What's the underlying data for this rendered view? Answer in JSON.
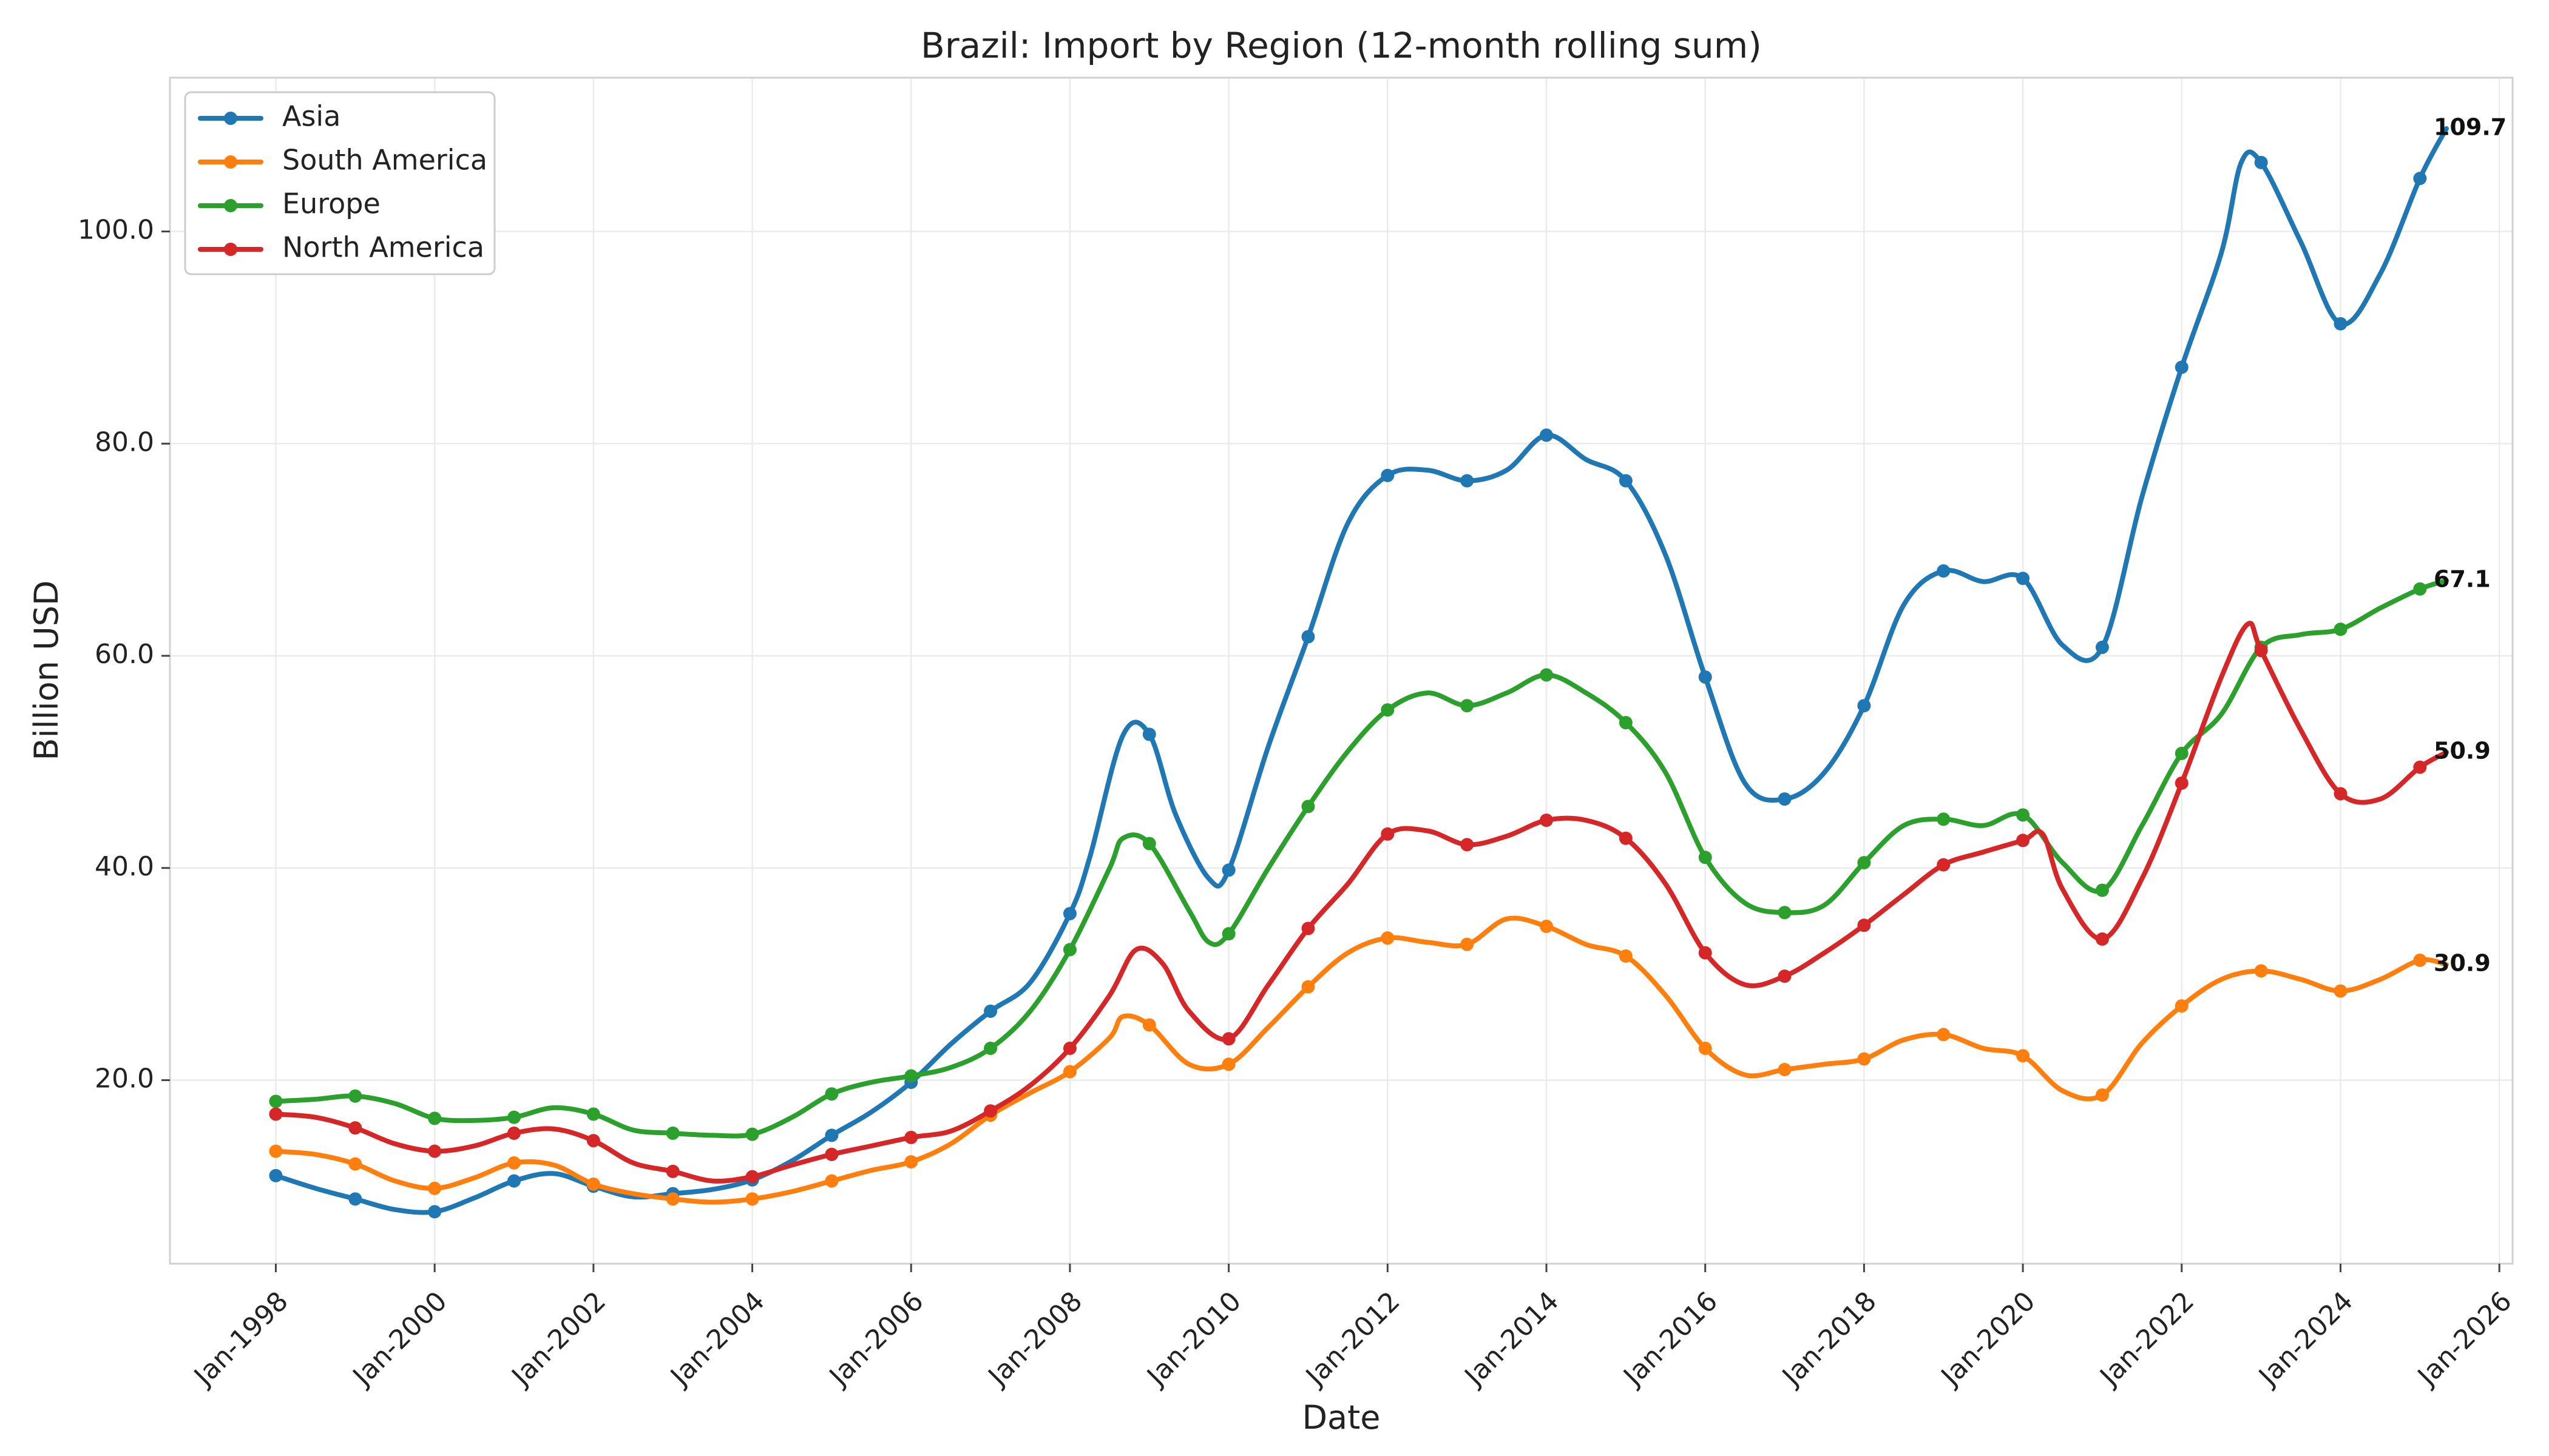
{
  "chart_data": {
    "type": "line",
    "title": "Brazil: Import by Region (12-month rolling sum)",
    "xlabel": "Date",
    "ylabel": "Billion USD",
    "xlim": [
      "1996-09",
      "2026-03"
    ],
    "ylim": [
      2.7,
      114.5
    ],
    "grid": true,
    "legend_position": "top-left",
    "x_ticks": [
      "Jan-1998",
      "Jan-2000",
      "Jan-2002",
      "Jan-2004",
      "Jan-2006",
      "Jan-2008",
      "Jan-2010",
      "Jan-2012",
      "Jan-2014",
      "Jan-2016",
      "Jan-2018",
      "Jan-2020",
      "Jan-2022",
      "Jan-2024",
      "Jan-2026"
    ],
    "y_ticks": [
      "20.0",
      "40.0",
      "60.0",
      "80.0",
      "100.0"
    ],
    "series": [
      {
        "name": "Asia",
        "color": "#1f77b4",
        "end_label": "109.7",
        "points": [
          [
            "1998-01",
            11.0
          ],
          [
            "1998-07",
            9.8
          ],
          [
            "1999-01",
            8.8
          ],
          [
            "1999-07",
            7.8
          ],
          [
            "2000-01",
            7.6
          ],
          [
            "2000-07",
            8.9
          ],
          [
            "2001-01",
            10.5
          ],
          [
            "2001-07",
            11.2
          ],
          [
            "2002-01",
            10.0
          ],
          [
            "2002-07",
            9.0
          ],
          [
            "2003-01",
            9.3
          ],
          [
            "2003-07",
            9.7
          ],
          [
            "2004-01",
            10.6
          ],
          [
            "2004-07",
            12.4
          ],
          [
            "2005-01",
            14.8
          ],
          [
            "2005-07",
            17.0
          ],
          [
            "2006-01",
            19.8
          ],
          [
            "2006-07",
            23.4
          ],
          [
            "2007-01",
            26.5
          ],
          [
            "2007-07",
            29.2
          ],
          [
            "2008-01",
            35.7
          ],
          [
            "2008-04",
            41.0
          ],
          [
            "2008-09",
            52.5
          ],
          [
            "2009-01",
            52.6
          ],
          [
            "2009-05",
            45.0
          ],
          [
            "2009-10",
            39.0
          ],
          [
            "2010-01",
            39.8
          ],
          [
            "2010-07",
            51.5
          ],
          [
            "2011-01",
            61.8
          ],
          [
            "2011-07",
            72.5
          ],
          [
            "2012-01",
            77.0
          ],
          [
            "2012-07",
            77.5
          ],
          [
            "2013-01",
            76.5
          ],
          [
            "2013-07",
            77.5
          ],
          [
            "2014-01",
            80.8
          ],
          [
            "2014-07",
            78.5
          ],
          [
            "2015-01",
            76.5
          ],
          [
            "2015-07",
            69.5
          ],
          [
            "2016-01",
            58.0
          ],
          [
            "2016-07",
            48.0
          ],
          [
            "2017-01",
            46.5
          ],
          [
            "2017-07",
            49.0
          ],
          [
            "2018-01",
            55.3
          ],
          [
            "2018-07",
            64.8
          ],
          [
            "2019-01",
            68.0
          ],
          [
            "2019-07",
            67.0
          ],
          [
            "2020-01",
            67.3
          ],
          [
            "2020-07",
            61.0
          ],
          [
            "2021-01",
            60.8
          ],
          [
            "2021-07",
            75.0
          ],
          [
            "2022-01",
            87.2
          ],
          [
            "2022-07",
            98.0
          ],
          [
            "2022-10",
            106.5
          ],
          [
            "2023-01",
            106.5
          ],
          [
            "2023-07",
            99.0
          ],
          [
            "2024-01",
            91.3
          ],
          [
            "2024-07",
            96.0
          ],
          [
            "2025-01",
            105.0
          ],
          [
            "2025-05",
            109.7
          ]
        ]
      },
      {
        "name": "South America",
        "color": "#ff7f0e",
        "end_label": "30.9",
        "points": [
          [
            "1998-01",
            13.3
          ],
          [
            "1998-07",
            13.0
          ],
          [
            "1999-01",
            12.1
          ],
          [
            "1999-07",
            10.5
          ],
          [
            "2000-01",
            9.8
          ],
          [
            "2000-07",
            10.8
          ],
          [
            "2001-01",
            12.2
          ],
          [
            "2001-07",
            12.0
          ],
          [
            "2002-01",
            10.2
          ],
          [
            "2002-07",
            9.3
          ],
          [
            "2003-01",
            8.8
          ],
          [
            "2003-07",
            8.5
          ],
          [
            "2004-01",
            8.8
          ],
          [
            "2004-07",
            9.5
          ],
          [
            "2005-01",
            10.5
          ],
          [
            "2005-07",
            11.5
          ],
          [
            "2006-01",
            12.3
          ],
          [
            "2006-07",
            14.0
          ],
          [
            "2007-01",
            16.7
          ],
          [
            "2007-07",
            18.8
          ],
          [
            "2008-01",
            20.8
          ],
          [
            "2008-07",
            24.0
          ],
          [
            "2008-09",
            26.0
          ],
          [
            "2009-01",
            25.2
          ],
          [
            "2009-07",
            21.5
          ],
          [
            "2010-01",
            21.5
          ],
          [
            "2010-07",
            25.0
          ],
          [
            "2011-01",
            28.8
          ],
          [
            "2011-07",
            32.0
          ],
          [
            "2012-01",
            33.4
          ],
          [
            "2012-07",
            33.0
          ],
          [
            "2013-01",
            32.8
          ],
          [
            "2013-07",
            35.2
          ],
          [
            "2014-01",
            34.5
          ],
          [
            "2014-07",
            32.8
          ],
          [
            "2015-01",
            31.7
          ],
          [
            "2015-07",
            28.0
          ],
          [
            "2016-01",
            23.0
          ],
          [
            "2016-07",
            20.5
          ],
          [
            "2017-01",
            21.0
          ],
          [
            "2017-07",
            21.5
          ],
          [
            "2018-01",
            22.0
          ],
          [
            "2018-07",
            23.8
          ],
          [
            "2019-01",
            24.3
          ],
          [
            "2019-07",
            23.0
          ],
          [
            "2020-01",
            22.3
          ],
          [
            "2020-07",
            19.0
          ],
          [
            "2021-01",
            18.6
          ],
          [
            "2021-07",
            23.5
          ],
          [
            "2022-01",
            27.0
          ],
          [
            "2022-07",
            29.5
          ],
          [
            "2023-01",
            30.3
          ],
          [
            "2023-07",
            29.5
          ],
          [
            "2024-01",
            28.4
          ],
          [
            "2024-07",
            29.5
          ],
          [
            "2025-01",
            31.3
          ],
          [
            "2025-05",
            30.9
          ]
        ]
      },
      {
        "name": "Europe",
        "color": "#2ca02c",
        "end_label": "67.1",
        "points": [
          [
            "1998-01",
            18.0
          ],
          [
            "1998-07",
            18.2
          ],
          [
            "1999-01",
            18.5
          ],
          [
            "1999-07",
            17.8
          ],
          [
            "2000-01",
            16.4
          ],
          [
            "2000-07",
            16.2
          ],
          [
            "2001-01",
            16.5
          ],
          [
            "2001-07",
            17.4
          ],
          [
            "2002-01",
            16.8
          ],
          [
            "2002-07",
            15.3
          ],
          [
            "2003-01",
            15.0
          ],
          [
            "2003-07",
            14.8
          ],
          [
            "2004-01",
            14.9
          ],
          [
            "2004-07",
            16.5
          ],
          [
            "2005-01",
            18.7
          ],
          [
            "2005-07",
            19.8
          ],
          [
            "2006-01",
            20.4
          ],
          [
            "2006-07",
            21.2
          ],
          [
            "2007-01",
            23.0
          ],
          [
            "2007-07",
            26.5
          ],
          [
            "2008-01",
            32.3
          ],
          [
            "2008-07",
            40.0
          ],
          [
            "2008-09",
            42.8
          ],
          [
            "2009-01",
            42.3
          ],
          [
            "2009-07",
            36.0
          ],
          [
            "2009-10",
            33.0
          ],
          [
            "2010-01",
            33.8
          ],
          [
            "2010-07",
            40.0
          ],
          [
            "2011-01",
            45.8
          ],
          [
            "2011-07",
            51.0
          ],
          [
            "2012-01",
            54.9
          ],
          [
            "2012-07",
            56.5
          ],
          [
            "2013-01",
            55.3
          ],
          [
            "2013-07",
            56.5
          ],
          [
            "2014-01",
            58.2
          ],
          [
            "2014-07",
            56.5
          ],
          [
            "2015-01",
            53.7
          ],
          [
            "2015-07",
            49.0
          ],
          [
            "2016-01",
            41.0
          ],
          [
            "2016-07",
            36.7
          ],
          [
            "2017-01",
            35.8
          ],
          [
            "2017-07",
            36.5
          ],
          [
            "2018-01",
            40.5
          ],
          [
            "2018-07",
            44.0
          ],
          [
            "2019-01",
            44.6
          ],
          [
            "2019-07",
            44.0
          ],
          [
            "2020-01",
            45.0
          ],
          [
            "2020-07",
            40.5
          ],
          [
            "2021-01",
            37.9
          ],
          [
            "2021-07",
            44.0
          ],
          [
            "2022-01",
            50.8
          ],
          [
            "2022-07",
            54.5
          ],
          [
            "2023-01",
            60.8
          ],
          [
            "2023-07",
            62.0
          ],
          [
            "2024-01",
            62.5
          ],
          [
            "2024-07",
            64.5
          ],
          [
            "2025-01",
            66.3
          ],
          [
            "2025-05",
            67.1
          ]
        ]
      },
      {
        "name": "North America",
        "color": "#d62728",
        "end_label": "50.9",
        "points": [
          [
            "1998-01",
            16.8
          ],
          [
            "1998-07",
            16.5
          ],
          [
            "1999-01",
            15.5
          ],
          [
            "1999-07",
            14.0
          ],
          [
            "2000-01",
            13.3
          ],
          [
            "2000-07",
            13.8
          ],
          [
            "2001-01",
            15.0
          ],
          [
            "2001-07",
            15.4
          ],
          [
            "2002-01",
            14.3
          ],
          [
            "2002-07",
            12.2
          ],
          [
            "2003-01",
            11.4
          ],
          [
            "2003-07",
            10.5
          ],
          [
            "2004-01",
            10.9
          ],
          [
            "2004-07",
            12.0
          ],
          [
            "2005-01",
            13.0
          ],
          [
            "2005-07",
            13.8
          ],
          [
            "2006-01",
            14.6
          ],
          [
            "2006-07",
            15.2
          ],
          [
            "2007-01",
            17.1
          ],
          [
            "2007-07",
            19.5
          ],
          [
            "2008-01",
            23.0
          ],
          [
            "2008-07",
            28.0
          ],
          [
            "2008-11",
            32.3
          ],
          [
            "2009-03",
            31.0
          ],
          [
            "2009-07",
            26.5
          ],
          [
            "2010-01",
            23.9
          ],
          [
            "2010-07",
            29.0
          ],
          [
            "2011-01",
            34.3
          ],
          [
            "2011-07",
            38.5
          ],
          [
            "2012-01",
            43.2
          ],
          [
            "2012-07",
            43.5
          ],
          [
            "2013-01",
            42.2
          ],
          [
            "2013-07",
            43.0
          ],
          [
            "2014-01",
            44.5
          ],
          [
            "2014-07",
            44.5
          ],
          [
            "2015-01",
            42.8
          ],
          [
            "2015-07",
            38.5
          ],
          [
            "2016-01",
            32.0
          ],
          [
            "2016-07",
            29.0
          ],
          [
            "2017-01",
            29.8
          ],
          [
            "2017-07",
            32.0
          ],
          [
            "2018-01",
            34.6
          ],
          [
            "2018-07",
            37.5
          ],
          [
            "2019-01",
            40.3
          ],
          [
            "2019-07",
            41.5
          ],
          [
            "2020-01",
            42.6
          ],
          [
            "2020-04",
            43.2
          ],
          [
            "2020-07",
            38.0
          ],
          [
            "2021-01",
            33.3
          ],
          [
            "2021-07",
            39.0
          ],
          [
            "2022-01",
            48.0
          ],
          [
            "2022-07",
            58.0
          ],
          [
            "2022-11",
            63.0
          ],
          [
            "2023-01",
            60.5
          ],
          [
            "2023-07",
            53.0
          ],
          [
            "2024-01",
            47.0
          ],
          [
            "2024-07",
            46.5
          ],
          [
            "2025-01",
            49.5
          ],
          [
            "2025-05",
            50.9
          ]
        ]
      }
    ]
  }
}
